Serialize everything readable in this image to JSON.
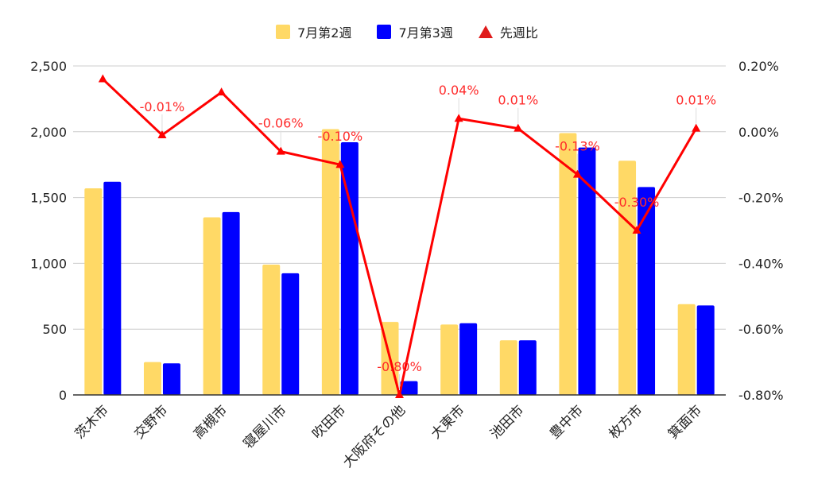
{
  "chart_data": {
    "type": "bar",
    "categories": [
      "茨木市",
      "交野市",
      "高槻市",
      "寝屋川市",
      "吹田市",
      "大阪府その他",
      "大東市",
      "池田市",
      "豊中市",
      "枚方市",
      "箕面市"
    ],
    "series": [
      {
        "name": "7月第2週",
        "values": [
          1570,
          250,
          1350,
          990,
          2020,
          555,
          535,
          415,
          1990,
          1780,
          690
        ],
        "color": "#ffd966",
        "axis": "left",
        "kind": "bar"
      },
      {
        "name": "7月第3週",
        "values": [
          1620,
          240,
          1390,
          925,
          1920,
          105,
          545,
          415,
          1880,
          1580,
          680
        ],
        "color": "#0000ff",
        "axis": "left",
        "kind": "bar"
      },
      {
        "name": "先週比",
        "values": [
          0.0016,
          -0.0001,
          0.0012,
          -0.0006,
          -0.001,
          -0.008,
          0.0004,
          0.0001,
          -0.0013,
          -0.003,
          0.0001
        ],
        "color": "#ff0000",
        "axis": "right",
        "kind": "line"
      }
    ],
    "data_labels": {
      "先週比": [
        "",
        "-0.01%",
        "",
        "-0.06%",
        "-0.10%",
        "-0.80%",
        "0.04%",
        "0.01%",
        "-0.13%",
        "-0.30%",
        "0.01%"
      ]
    },
    "y_left": {
      "min": 0,
      "max": 2500,
      "ticks": [
        "0",
        "500",
        "1,000",
        "1,500",
        "2,000",
        "2,500"
      ]
    },
    "y_right": {
      "min": -0.008,
      "max": 0.002,
      "ticks": [
        "-0.80%",
        "-0.60%",
        "-0.40%",
        "-0.20%",
        "0.00%",
        "0.20%"
      ]
    },
    "grid": true,
    "legend_position": "top"
  },
  "legend": {
    "items": [
      {
        "label": "7月第2週",
        "color": "#ffd966",
        "marker": "square"
      },
      {
        "label": "7月第3週",
        "color": "#0000ff",
        "marker": "square"
      },
      {
        "label": "先週比",
        "color": "#e01b1b",
        "marker": "triangle"
      }
    ]
  }
}
